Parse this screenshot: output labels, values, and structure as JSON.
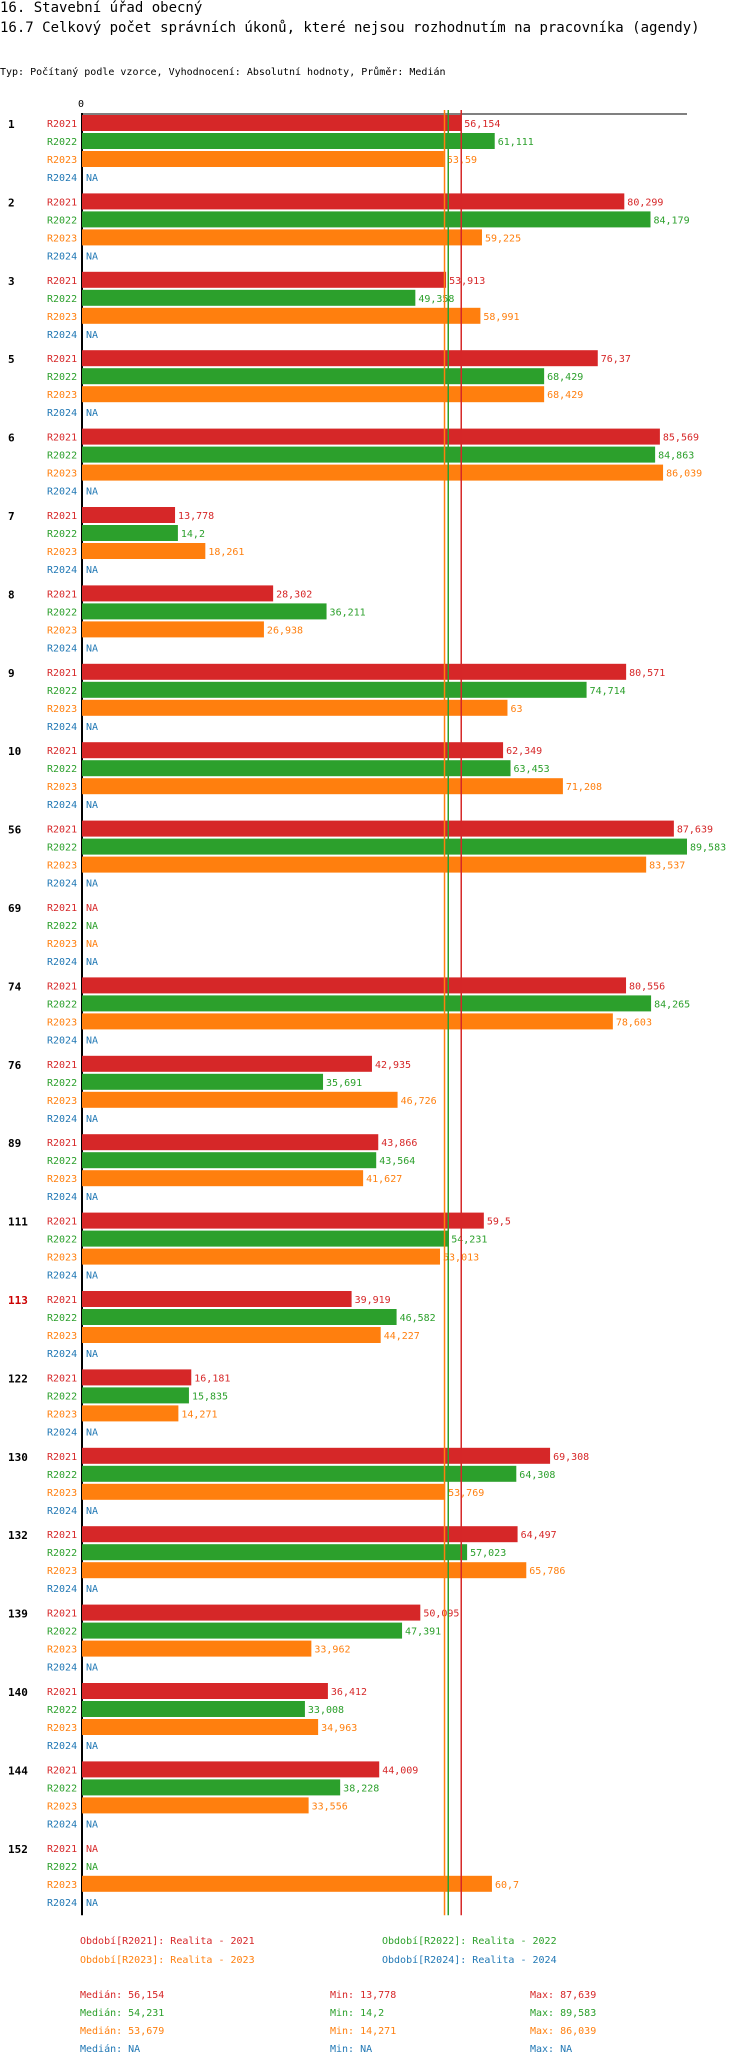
{
  "header": {
    "section_title": "16. Stavební úřad obecný",
    "chart_title": "16.7 Celkový počet správních úkonů, které nejsou rozhodnutím na pracovníka (agendy)",
    "subtitle": "Typ: Počítaný podle vzorce, Vyhodnocení: Absolutní hodnoty, Průměr: Medián"
  },
  "colors": {
    "R2021": "#d62728",
    "R2022": "#2ca02c",
    "R2023": "#ff7f0e",
    "R2024": "#1f77b4",
    "highlight": "#cc0000"
  },
  "chart_data": {
    "type": "bar",
    "orientation": "horizontal",
    "xlim": [
      0,
      89.583
    ],
    "axis_zero_label": "0",
    "series_names": [
      "R2021",
      "R2022",
      "R2023",
      "R2024"
    ],
    "missing_label": "NA",
    "categories": [
      {
        "id": "1",
        "highlight": false,
        "values": [
          56.154,
          61.111,
          53.59,
          null
        ],
        "labels": [
          "56,154",
          "61,111",
          "53,59",
          "NA"
        ]
      },
      {
        "id": "2",
        "highlight": false,
        "values": [
          80.299,
          84.179,
          59.225,
          null
        ],
        "labels": [
          "80,299",
          "84,179",
          "59,225",
          "NA"
        ]
      },
      {
        "id": "3",
        "highlight": false,
        "values": [
          53.913,
          49.358,
          58.991,
          null
        ],
        "labels": [
          "53,913",
          "49,358",
          "58,991",
          "NA"
        ]
      },
      {
        "id": "5",
        "highlight": false,
        "values": [
          76.37,
          68.429,
          68.429,
          null
        ],
        "labels": [
          "76,37",
          "68,429",
          "68,429",
          "NA"
        ]
      },
      {
        "id": "6",
        "highlight": false,
        "values": [
          85.569,
          84.863,
          86.039,
          null
        ],
        "labels": [
          "85,569",
          "84,863",
          "86,039",
          "NA"
        ]
      },
      {
        "id": "7",
        "highlight": false,
        "values": [
          13.778,
          14.2,
          18.261,
          null
        ],
        "labels": [
          "13,778",
          "14,2",
          "18,261",
          "NA"
        ]
      },
      {
        "id": "8",
        "highlight": false,
        "values": [
          28.302,
          36.211,
          26.938,
          null
        ],
        "labels": [
          "28,302",
          "36,211",
          "26,938",
          "NA"
        ]
      },
      {
        "id": "9",
        "highlight": false,
        "values": [
          80.571,
          74.714,
          63,
          null
        ],
        "labels": [
          "80,571",
          "74,714",
          "63",
          "NA"
        ]
      },
      {
        "id": "10",
        "highlight": false,
        "values": [
          62.349,
          63.453,
          71.208,
          null
        ],
        "labels": [
          "62,349",
          "63,453",
          "71,208",
          "NA"
        ]
      },
      {
        "id": "56",
        "highlight": false,
        "values": [
          87.639,
          89.583,
          83.537,
          null
        ],
        "labels": [
          "87,639",
          "89,583",
          "83,537",
          "NA"
        ]
      },
      {
        "id": "69",
        "highlight": false,
        "values": [
          null,
          null,
          null,
          null
        ],
        "labels": [
          "NA",
          "NA",
          "NA",
          "NA"
        ]
      },
      {
        "id": "74",
        "highlight": false,
        "values": [
          80.556,
          84.265,
          78.603,
          null
        ],
        "labels": [
          "80,556",
          "84,265",
          "78,603",
          "NA"
        ]
      },
      {
        "id": "76",
        "highlight": false,
        "values": [
          42.935,
          35.691,
          46.726,
          null
        ],
        "labels": [
          "42,935",
          "35,691",
          "46,726",
          "NA"
        ]
      },
      {
        "id": "89",
        "highlight": false,
        "values": [
          43.866,
          43.564,
          41.627,
          null
        ],
        "labels": [
          "43,866",
          "43,564",
          "41,627",
          "NA"
        ]
      },
      {
        "id": "111",
        "highlight": false,
        "values": [
          59.5,
          54.231,
          53.013,
          null
        ],
        "labels": [
          "59,5",
          "54,231",
          "53,013",
          "NA"
        ]
      },
      {
        "id": "113",
        "highlight": true,
        "values": [
          39.919,
          46.582,
          44.227,
          null
        ],
        "labels": [
          "39,919",
          "46,582",
          "44,227",
          "NA"
        ]
      },
      {
        "id": "122",
        "highlight": false,
        "values": [
          16.181,
          15.835,
          14.271,
          null
        ],
        "labels": [
          "16,181",
          "15,835",
          "14,271",
          "NA"
        ]
      },
      {
        "id": "130",
        "highlight": false,
        "values": [
          69.308,
          64.308,
          53.769,
          null
        ],
        "labels": [
          "69,308",
          "64,308",
          "53,769",
          "NA"
        ]
      },
      {
        "id": "132",
        "highlight": false,
        "values": [
          64.497,
          57.023,
          65.786,
          null
        ],
        "labels": [
          "64,497",
          "57,023",
          "65,786",
          "NA"
        ]
      },
      {
        "id": "139",
        "highlight": false,
        "values": [
          50.095,
          47.391,
          33.962,
          null
        ],
        "labels": [
          "50,095",
          "47,391",
          "33,962",
          "NA"
        ]
      },
      {
        "id": "140",
        "highlight": false,
        "values": [
          36.412,
          33.008,
          34.963,
          null
        ],
        "labels": [
          "36,412",
          "33,008",
          "34,963",
          "NA"
        ]
      },
      {
        "id": "144",
        "highlight": false,
        "values": [
          44.009,
          38.228,
          33.556,
          null
        ],
        "labels": [
          "44,009",
          "38,228",
          "33,556",
          "NA"
        ]
      },
      {
        "id": "152",
        "highlight": false,
        "values": [
          null,
          null,
          60.7,
          null
        ],
        "labels": [
          "NA",
          "NA",
          "60,7",
          "NA"
        ]
      }
    ],
    "median_lines": [
      56.154,
      54.231,
      53.679
    ],
    "legend": [
      "Období[R2021]: Realita - 2021",
      "Období[R2022]: Realita - 2022",
      "Období[R2023]: Realita - 2023",
      "Období[R2024]: Realita - 2024"
    ],
    "stats": [
      {
        "median": "Medián: 56,154",
        "min": "Min: 13,778",
        "max": "Max: 87,639"
      },
      {
        "median": "Medián: 54,231",
        "min": "Min: 14,2",
        "max": "Max: 89,583"
      },
      {
        "median": "Medián: 53,679",
        "min": "Min: 14,271",
        "max": "Max: 86,039"
      },
      {
        "median": "Medián: NA",
        "min": "Min: NA",
        "max": "Max: NA"
      }
    ]
  }
}
